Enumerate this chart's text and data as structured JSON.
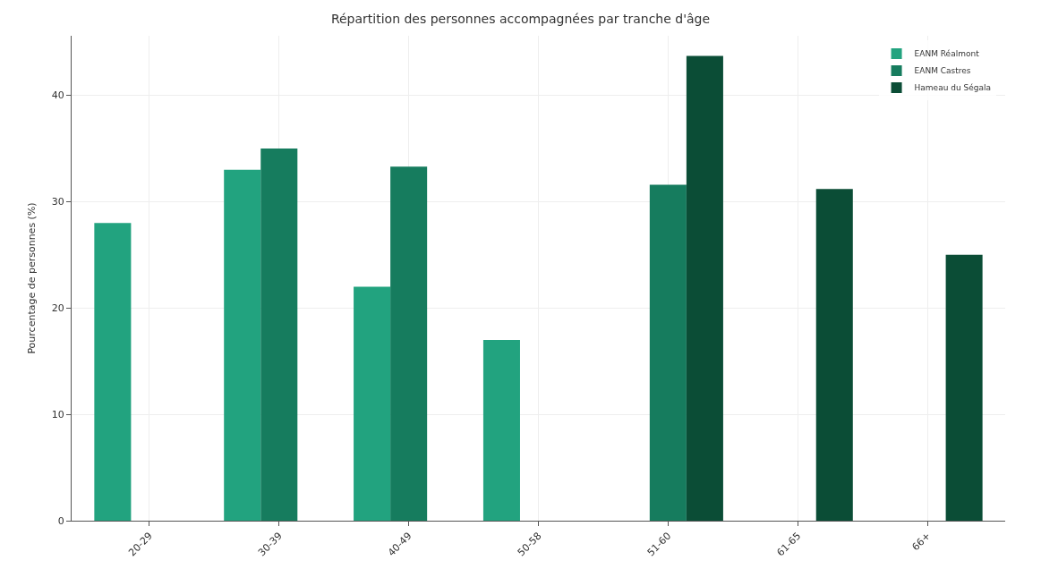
{
  "chart_data": {
    "type": "bar",
    "title": "Répartition des personnes accompagnées par tranche d'âge",
    "ylabel": "Pourcentage de personnes (%)",
    "categories": [
      "20-29",
      "30-39",
      "40-49",
      "50-58",
      "51-60",
      "61-65",
      "66+"
    ],
    "series": [
      {
        "name": "EANM Réalmont",
        "color": "#22a37f",
        "values": [
          28,
          33,
          22,
          17,
          null,
          null,
          null
        ]
      },
      {
        "name": "EANM Castres",
        "color": "#167c5e",
        "values": [
          null,
          35,
          33.3,
          null,
          31.6,
          null,
          null
        ]
      },
      {
        "name": "Hameau du Ségala",
        "color": "#0b4d36",
        "values": [
          null,
          null,
          null,
          null,
          43.7,
          31.2,
          25
        ]
      }
    ],
    "ylim": [
      0,
      45.6
    ],
    "yticks": [
      0,
      10,
      20,
      30,
      40
    ],
    "grid": true,
    "legend": "top right"
  }
}
